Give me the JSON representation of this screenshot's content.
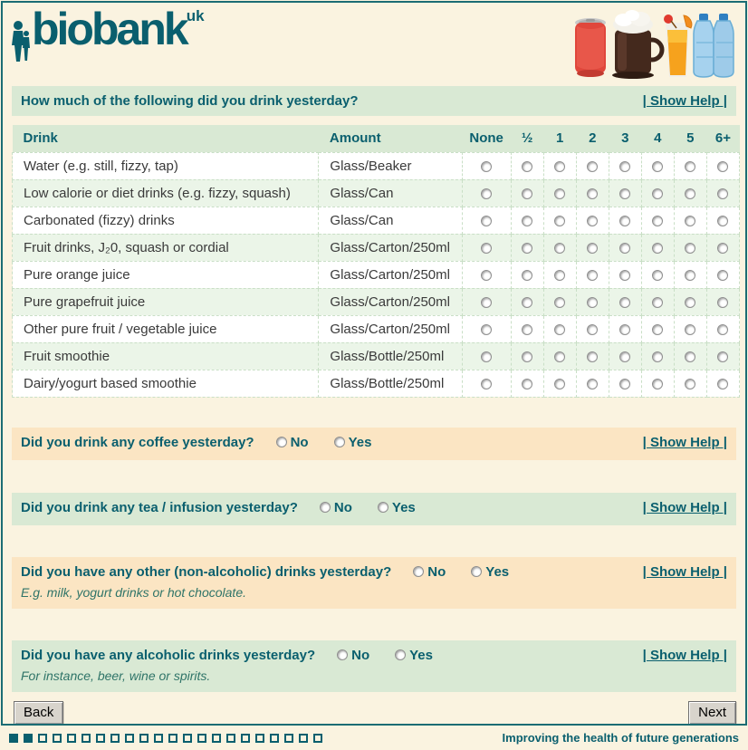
{
  "colors": {
    "teal": "#0a5f6e",
    "border_teal": "#1b6c74",
    "cream": "#faf3e0",
    "green_bar": "#d9e9d4",
    "peach_bar": "#fbe5c3",
    "table_header_bg": "#d9e9d4",
    "row_alt_bg": "#ebf5e8",
    "dashed_border": "#c9dfc6"
  },
  "header": {
    "logo_text": "biobank",
    "logo_sup": "uk",
    "images": [
      "red-soda-can",
      "hot-chocolate-mug",
      "orange-juice-glass",
      "blue-water-bottles"
    ]
  },
  "intro_bar": {
    "question": "How much of the following did you drink yesterday?",
    "show_help_label": "| Show Help |"
  },
  "table": {
    "drink_header": "Drink",
    "amount_header": "Amount",
    "options": [
      "None",
      "½",
      "1",
      "2",
      "3",
      "4",
      "5",
      "6+"
    ],
    "rows": [
      {
        "drink": "Water (e.g. still, fizzy, tap)",
        "amount": "Glass/Beaker"
      },
      {
        "drink": "Low calorie or diet drinks (e.g. fizzy, squash)",
        "amount": "Glass/Can"
      },
      {
        "drink": "Carbonated (fizzy) drinks",
        "amount": "Glass/Can"
      },
      {
        "drink": "Fruit drinks, J₂0, squash or cordial",
        "amount": "Glass/Carton/250ml"
      },
      {
        "drink": "Pure orange juice",
        "amount": "Glass/Carton/250ml"
      },
      {
        "drink": "Pure grapefruit juice",
        "amount": "Glass/Carton/250ml"
      },
      {
        "drink": "Other pure fruit / vegetable juice",
        "amount": "Glass/Carton/250ml"
      },
      {
        "drink": "Fruit smoothie",
        "amount": "Glass/Bottle/250ml"
      },
      {
        "drink": "Dairy/yogurt based smoothie",
        "amount": "Glass/Bottle/250ml"
      }
    ]
  },
  "questions": [
    {
      "id": "coffee",
      "label": "Did you drink any coffee yesterday?",
      "no_label": "No",
      "yes_label": "Yes",
      "show_help_label": "| Show Help |",
      "subtitle": "",
      "theme": "peach"
    },
    {
      "id": "tea",
      "label": "Did you drink any tea / infusion yesterday?",
      "no_label": "No",
      "yes_label": "Yes",
      "show_help_label": "| Show Help |",
      "subtitle": "",
      "theme": "green"
    },
    {
      "id": "nonalc",
      "label": "Did you have any other (non-alcoholic) drinks yesterday?",
      "no_label": "No",
      "yes_label": "Yes",
      "show_help_label": "| Show Help |",
      "subtitle": "E.g. milk, yogurt drinks or hot chocolate.",
      "theme": "peach"
    },
    {
      "id": "alcohol",
      "label": "Did you have any alcoholic drinks yesterday?",
      "no_label": "No",
      "yes_label": "Yes",
      "show_help_label": "| Show Help |",
      "subtitle": "For instance, beer, wine or spirits.",
      "theme": "green"
    }
  ],
  "nav": {
    "back_label": "Back",
    "next_label": "Next"
  },
  "footer": {
    "motto": "Improving the health of future generations",
    "progress_total": 22,
    "progress_filled": 2
  }
}
